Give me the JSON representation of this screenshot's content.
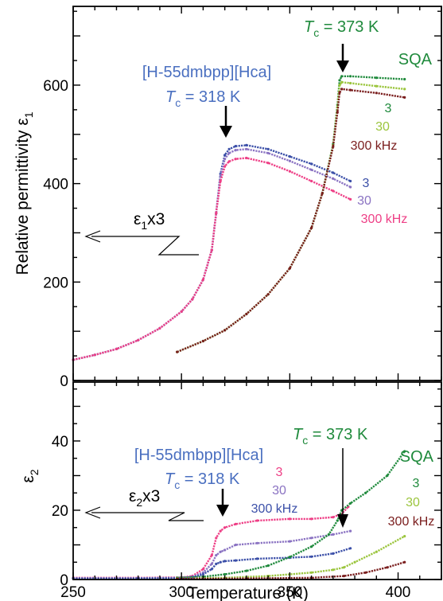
{
  "chart_data": [
    {
      "type": "line",
      "panel": "top",
      "ylabel": "Relative permittivity  ε",
      "ylabel_sub": "1",
      "xlim": [
        250,
        420
      ],
      "ylim": [
        0,
        760
      ],
      "yticks": [
        0,
        200,
        400,
        600
      ],
      "ytick_labels": [
        "0",
        "200",
        "400",
        "600"
      ],
      "colors": {
        "ca_3": "#3b4fa8",
        "ca_30": "#8a72c2",
        "ca_300": "#ee3f86",
        "sqa_3": "#1f8a3c",
        "sqa_30": "#9bc53d",
        "sqa_300": "#7a1d1d",
        "black": "#000000"
      },
      "series": [
        {
          "name": "3",
          "group": "[H-55dmbpp][Hca]",
          "color_key": "ca_3",
          "x": [
            250,
            260,
            270,
            280,
            290,
            300,
            305,
            310,
            314,
            316,
            318,
            320,
            322,
            325,
            330,
            340,
            350,
            360,
            370,
            378
          ],
          "y": [
            42,
            52,
            64,
            82,
            106,
            140,
            165,
            205,
            265,
            340,
            420,
            458,
            470,
            476,
            478,
            470,
            455,
            440,
            422,
            405
          ]
        },
        {
          "name": "30",
          "group": "[H-55dmbpp][Hca]",
          "color_key": "ca_30",
          "x": [
            250,
            260,
            270,
            280,
            290,
            300,
            305,
            310,
            314,
            316,
            318,
            320,
            322,
            325,
            330,
            340,
            350,
            360,
            370,
            378
          ],
          "y": [
            42,
            52,
            64,
            82,
            106,
            140,
            165,
            205,
            265,
            340,
            415,
            450,
            462,
            468,
            470,
            462,
            446,
            428,
            410,
            393
          ]
        },
        {
          "name": "300 kHz",
          "group": "[H-55dmbpp][Hca]",
          "color_key": "ca_300",
          "x": [
            250,
            260,
            270,
            280,
            290,
            300,
            305,
            310,
            314,
            316,
            318,
            320,
            322,
            325,
            330,
            340,
            350,
            360,
            370,
            378
          ],
          "y": [
            42,
            52,
            64,
            82,
            106,
            140,
            165,
            205,
            265,
            340,
            405,
            435,
            445,
            450,
            452,
            442,
            425,
            405,
            385,
            368
          ]
        },
        {
          "name": "3",
          "group": "SQA",
          "color_key": "sqa_3",
          "x": [
            298,
            310,
            320,
            330,
            340,
            350,
            360,
            365,
            370,
            372,
            373,
            374,
            378,
            390,
            403
          ],
          "y": [
            58,
            80,
            102,
            135,
            175,
            228,
            310,
            380,
            480,
            560,
            610,
            618,
            618,
            615,
            612
          ]
        },
        {
          "name": "30",
          "group": "SQA",
          "color_key": "sqa_30",
          "x": [
            298,
            310,
            320,
            330,
            340,
            350,
            360,
            365,
            370,
            372,
            373,
            374,
            378,
            390,
            403
          ],
          "y": [
            58,
            80,
            102,
            135,
            175,
            228,
            310,
            380,
            478,
            555,
            600,
            606,
            604,
            598,
            592
          ]
        },
        {
          "name": "300 kHz",
          "group": "SQA",
          "color_key": "sqa_300",
          "x": [
            298,
            310,
            320,
            330,
            340,
            350,
            360,
            365,
            370,
            372,
            373,
            374,
            378,
            390,
            403
          ],
          "y": [
            58,
            80,
            102,
            135,
            175,
            228,
            310,
            380,
            475,
            545,
            585,
            592,
            590,
            584,
            575
          ]
        }
      ],
      "annotations": {
        "ca_name": "[H-55dmbpp][Hca]",
        "ca_tc_T": "T",
        "ca_tc_sub": "c",
        "ca_tc_value": " = 318 K",
        "sqa_tc_T": "T",
        "sqa_tc_sub": "c",
        "sqa_tc_value": " = 373 K",
        "sqa_name": "SQA",
        "eps_label_a": "ε",
        "eps_label_sub": "1",
        "eps_label_b": "x3",
        "ca_freq": [
          "3",
          "30",
          "300 kHz"
        ],
        "sqa_freq": [
          "3",
          "30",
          "300 kHz"
        ]
      }
    },
    {
      "type": "line",
      "panel": "bottom",
      "xlabel": "Temperature (K)",
      "ylabel": "ε",
      "ylabel_sub": "2",
      "xlim": [
        250,
        420
      ],
      "ylim": [
        0,
        57
      ],
      "xticks": [
        250,
        300,
        350,
        400
      ],
      "xtick_labels": [
        "250",
        "300",
        "350",
        "400"
      ],
      "yticks": [
        0,
        20,
        40
      ],
      "ytick_labels": [
        "0",
        "20",
        "40"
      ],
      "series": [
        {
          "name": "3",
          "group": "[H-55dmbpp][Hca]",
          "color_key": "ca_300",
          "x": [
            250,
            280,
            300,
            305,
            310,
            314,
            316,
            318,
            320,
            325,
            335,
            350,
            360,
            370,
            374,
            377
          ],
          "y": [
            0.5,
            0.5,
            0.6,
            1,
            3,
            7,
            12,
            14,
            15,
            16,
            17,
            17.5,
            17.5,
            18,
            19,
            21
          ]
        },
        {
          "name": "30",
          "group": "[H-55dmbpp][Hca]",
          "color_key": "ca_30",
          "x": [
            250,
            280,
            300,
            305,
            310,
            314,
            316,
            318,
            320,
            325,
            335,
            350,
            360,
            370,
            378
          ],
          "y": [
            0.4,
            0.4,
            0.5,
            0.8,
            2,
            4.5,
            7,
            8,
            8.5,
            10,
            10.5,
            11,
            12,
            13,
            14
          ]
        },
        {
          "name": "300 kHz",
          "group": "[H-55dmbpp][Hca]",
          "color_key": "ca_3",
          "x": [
            250,
            280,
            300,
            305,
            310,
            314,
            316,
            318,
            320,
            325,
            335,
            350,
            360,
            370,
            378
          ],
          "y": [
            0.3,
            0.3,
            0.4,
            0.6,
            1.5,
            3,
            4.5,
            5,
            5.3,
            5.5,
            6,
            6.3,
            6.6,
            7.5,
            9
          ]
        },
        {
          "name": "3",
          "group": "SQA",
          "color_key": "sqa_3",
          "x": [
            298,
            310,
            320,
            330,
            340,
            350,
            360,
            368,
            372,
            374,
            378,
            385,
            395,
            403
          ],
          "y": [
            0.5,
            0.8,
            1.5,
            2.5,
            4,
            6.5,
            9.5,
            13,
            17,
            20,
            22,
            25,
            30,
            37
          ]
        },
        {
          "name": "30",
          "group": "SQA",
          "color_key": "sqa_30",
          "x": [
            298,
            320,
            340,
            360,
            370,
            375,
            380,
            390,
            403
          ],
          "y": [
            0.3,
            0.5,
            1,
            2,
            2.8,
            3.5,
            5,
            8,
            12.5
          ]
        },
        {
          "name": "300 kHz",
          "group": "SQA",
          "color_key": "sqa_300",
          "x": [
            298,
            330,
            360,
            375,
            385,
            395,
            403
          ],
          "y": [
            0.2,
            0.3,
            0.5,
            1,
            2,
            3.5,
            5
          ]
        }
      ],
      "annotations": {
        "ca_name": "[H-55dmbpp][Hca]",
        "ca_tc_T": "T",
        "ca_tc_sub": "c",
        "ca_tc_value": " = 318 K",
        "sqa_tc_T": "T",
        "sqa_tc_sub": "c",
        "sqa_tc_value": " = 373 K",
        "sqa_name": "SQA",
        "eps_label_a": "ε",
        "eps_label_sub": "2",
        "eps_label_b": "x3",
        "ca_freq": [
          "3",
          "30",
          "300 kHz"
        ],
        "sqa_freq": [
          "3",
          "30",
          "300 kHz"
        ]
      }
    }
  ]
}
